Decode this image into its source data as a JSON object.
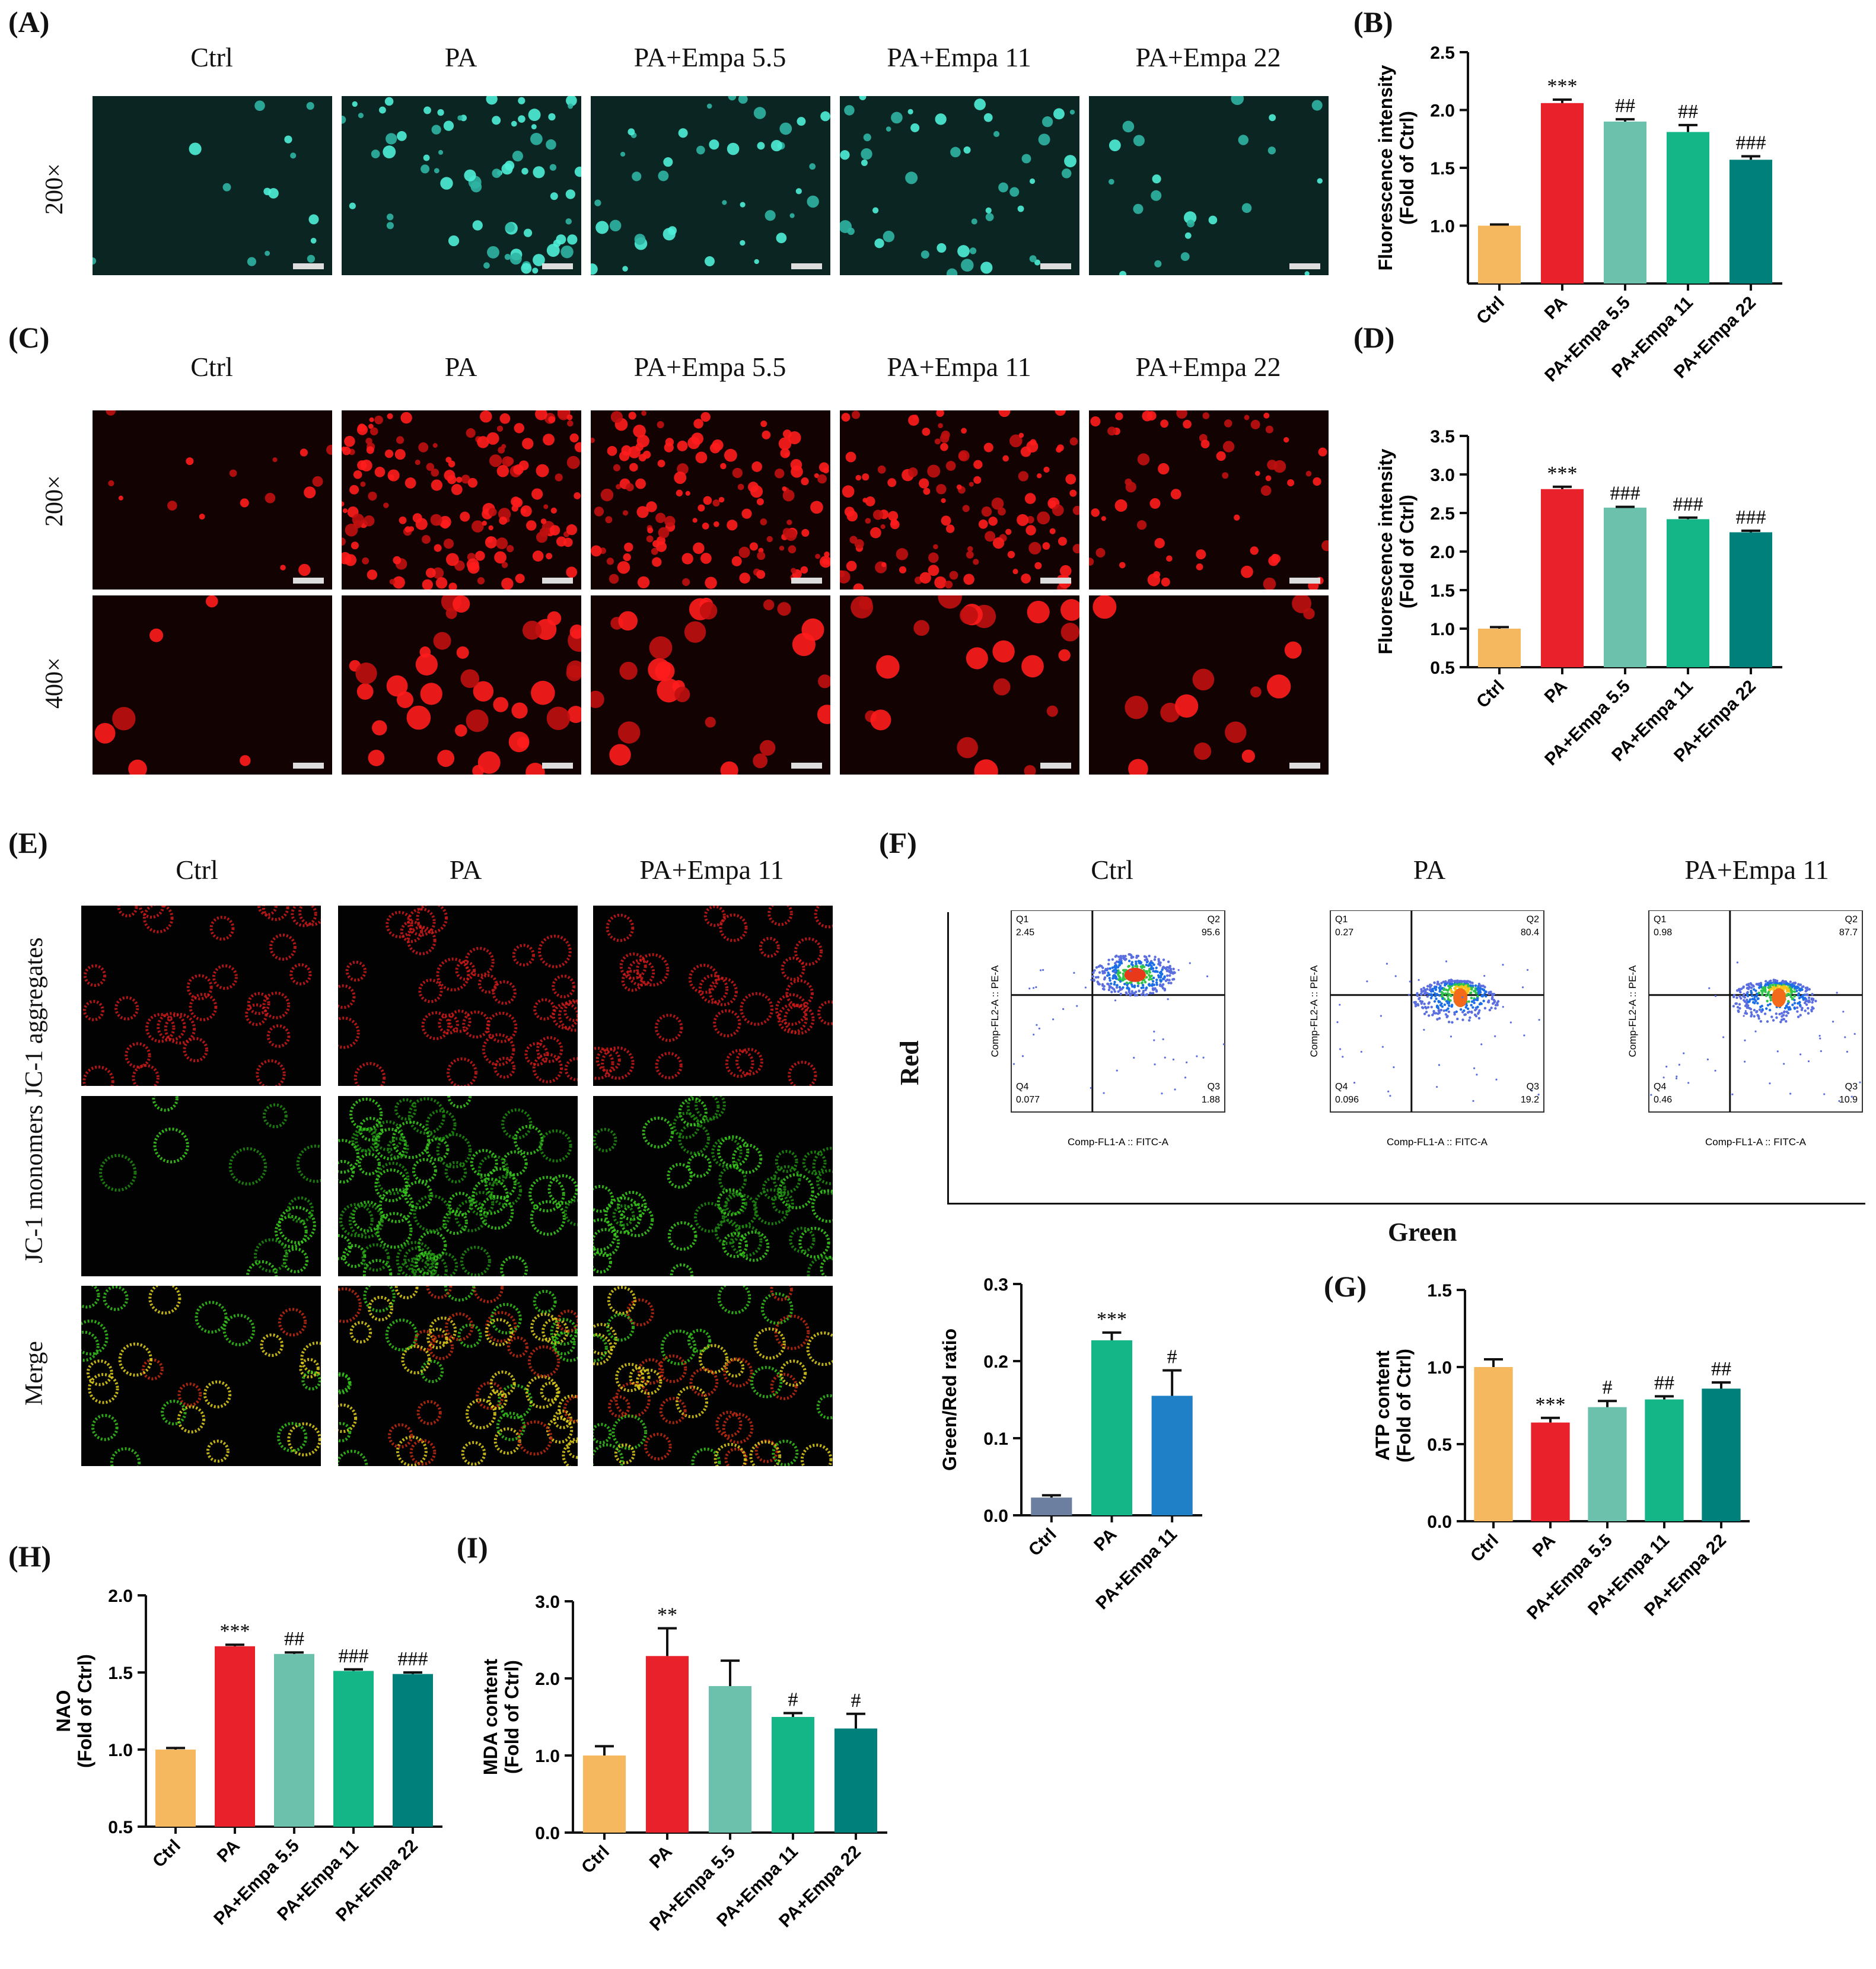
{
  "panels": {
    "A": "(A)",
    "B": "(B)",
    "C": "(C)",
    "D": "(D)",
    "E": "(E)",
    "F": "(F)",
    "G": "(G)",
    "H": "(H)",
    "I": "(I)"
  },
  "groups5": [
    "Ctrl",
    "PA",
    "PA+Empa 5.5",
    "PA+Empa 11",
    "PA+Empa 22"
  ],
  "groups3": [
    "Ctrl",
    "PA",
    "PA+Empa 11"
  ],
  "mag": {
    "m200": "200×",
    "m400": "400×"
  },
  "jc1": {
    "aggregates": "JC-1 aggregates",
    "monomers": "JC-1 monomers",
    "merge": "Merge"
  },
  "flow": {
    "y_axis": "Red",
    "x_axis": "Green",
    "inner_ylabel": "Comp-FL2-A :: PE-A",
    "inner_xlabel": "Comp-FL1-A :: FITC-A",
    "quadrant_names": [
      "Q1",
      "Q2",
      "Q3",
      "Q4"
    ],
    "plots": [
      {
        "group": "Ctrl",
        "q1": "2.45",
        "q2": "95.6",
        "q3": "1.88",
        "q4": "0.077"
      },
      {
        "group": "PA",
        "q1": "0.27",
        "q2": "80.4",
        "q3": "19.2",
        "q4": "0.096"
      },
      {
        "group": "PA+Empa 11",
        "q1": "0.98",
        "q2": "87.7",
        "q3": "10.9",
        "q4": "0.46"
      }
    ]
  },
  "colors": {
    "ctrl": "#f5b85f",
    "pa": "#e8212b",
    "e55": "#6cc1ac",
    "e11": "#14b586",
    "e22": "#00807a",
    "ctrl_grey": "#6c7fa0",
    "f_e11": "#1f7fc7"
  },
  "chart_data": [
    {
      "id": "B",
      "type": "bar",
      "categories": [
        "Ctrl",
        "PA",
        "PA+Empa 5.5",
        "PA+Empa 11",
        "PA+Empa 22"
      ],
      "values": [
        1.0,
        2.06,
        1.9,
        1.81,
        1.57
      ],
      "errors": [
        0.01,
        0.03,
        0.02,
        0.06,
        0.03
      ],
      "annotations": [
        "",
        "***",
        "##",
        "##",
        "###"
      ],
      "ylabel_lines": [
        "Fluorescence intensity",
        "(Fold of Ctrl)"
      ],
      "ylim": [
        0.5,
        2.5
      ],
      "yticks": [
        "1.0",
        "1.5",
        "2.0",
        "2.5"
      ]
    },
    {
      "id": "D",
      "type": "bar",
      "categories": [
        "Ctrl",
        "PA",
        "PA+Empa 5.5",
        "PA+Empa 11",
        "PA+Empa 22"
      ],
      "values": [
        1.0,
        2.81,
        2.57,
        2.42,
        2.25
      ],
      "errors": [
        0.02,
        0.03,
        0.01,
        0.02,
        0.02
      ],
      "annotations": [
        "",
        "***",
        "###",
        "###",
        "###"
      ],
      "ylabel_lines": [
        "Fluorescence intensity",
        "(Fold of Ctrl)"
      ],
      "ylim": [
        0.5,
        3.5
      ],
      "yticks": [
        "0.5",
        "1.0",
        "1.5",
        "2.0",
        "2.5",
        "3.0",
        "3.5"
      ]
    },
    {
      "id": "F",
      "type": "bar",
      "categories": [
        "Ctrl",
        "PA",
        "PA+Empa 11"
      ],
      "values": [
        0.023,
        0.227,
        0.155
      ],
      "errors": [
        0.003,
        0.01,
        0.033
      ],
      "annotations": [
        "",
        "***",
        "#"
      ],
      "ylabel_lines": [
        "Green/Red ratio"
      ],
      "ylim": [
        0.0,
        0.3
      ],
      "yticks": [
        "0.0",
        "0.1",
        "0.2",
        "0.3"
      ]
    },
    {
      "id": "G",
      "type": "bar",
      "categories": [
        "Ctrl",
        "PA",
        "PA+Empa 5.5",
        "PA+Empa 11",
        "PA+Empa 22"
      ],
      "values": [
        1.0,
        0.64,
        0.74,
        0.79,
        0.86
      ],
      "errors": [
        0.05,
        0.03,
        0.04,
        0.02,
        0.04
      ],
      "annotations": [
        "",
        "***",
        "#",
        "##",
        "##"
      ],
      "ylabel_lines": [
        "ATP content",
        "(Fold of Ctrl)"
      ],
      "ylim": [
        0.0,
        1.5
      ],
      "yticks": [
        "0.0",
        "0.5",
        "1.0",
        "1.5"
      ]
    },
    {
      "id": "H",
      "type": "bar",
      "categories": [
        "Ctrl",
        "PA",
        "PA+Empa 5.5",
        "PA+Empa 11",
        "PA+Empa 22"
      ],
      "values": [
        1.0,
        1.67,
        1.62,
        1.51,
        1.49
      ],
      "errors": [
        0.01,
        0.01,
        0.01,
        0.01,
        0.01
      ],
      "annotations": [
        "",
        "***",
        "##",
        "###",
        "###"
      ],
      "ylabel_lines": [
        "NAO",
        "(Fold of Ctrl)"
      ],
      "ylim": [
        0.5,
        2.0
      ],
      "yticks": [
        "0.5",
        "1.0",
        "1.5",
        "2.0"
      ]
    },
    {
      "id": "I",
      "type": "bar",
      "categories": [
        "Ctrl",
        "PA",
        "PA+Empa 5.5",
        "PA+Empa 11",
        "PA+Empa 22"
      ],
      "values": [
        1.0,
        2.29,
        1.9,
        1.5,
        1.35
      ],
      "errors": [
        0.12,
        0.36,
        0.33,
        0.05,
        0.19
      ],
      "annotations": [
        "",
        "**",
        "",
        "#",
        "#"
      ],
      "ylabel_lines": [
        "MDA content",
        "(Fold of Ctrl)"
      ],
      "ylim": [
        0.0,
        3.0
      ],
      "yticks": [
        "0.0",
        "1.0",
        "2.0",
        "3.0"
      ]
    }
  ]
}
